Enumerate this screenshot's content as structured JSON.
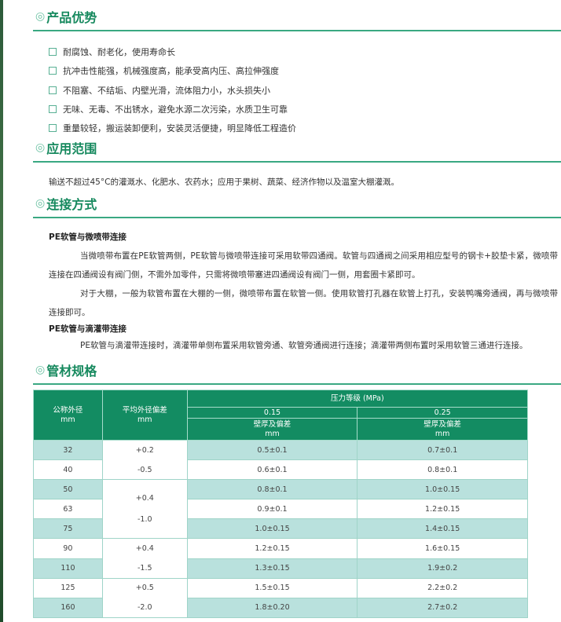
{
  "sections": {
    "advantages": {
      "title": "产品优势",
      "items": [
        "耐腐蚀、耐老化，使用寿命长",
        "抗冲击性能强，机械强度高，能承受高内压、高拉伸强度",
        "不阻塞、不结垢、内壁光滑，流体阻力小，水头损失小",
        "无味、无毒、不出锈水，避免水源二次污染，水质卫生可靠",
        "重量较轻，搬运装卸便利，安装灵活便捷，明显降低工程造价"
      ]
    },
    "application": {
      "title": "应用范围",
      "text": "输送不超过45°C的灌溉水、化肥水、农药水；应用于果树、蔬菜、经济作物以及温室大棚灌溉。"
    },
    "connection": {
      "title": "连接方式",
      "h1": "PE软管与微喷带连接",
      "p1": "当微喷带布置在PE软管两侧，PE软管与微喷带连接可采用软带四通阀。软管与四通阀之间采用相应型号的钢卡+胶垫卡紧，微喷带连接在四通阀设有阀门侧，不需外加零件，只需将微喷带塞进四通阀设有阀门一侧，用套圈卡紧即可。",
      "p2": "对于大棚，一般为软管布置在大棚的一侧，微喷带布置在软管一侧。使用软管打孔器在软管上打孔，安装鸭嘴旁通阀，再与微喷带连接即可。",
      "h2": "PE软管与滴灌带连接",
      "p3": "PE软管与滴灌带连接时，滴灌带单侧布置采用软管旁通、软管旁通阀进行连接；滴灌带两侧布置时采用软管三通进行连接。"
    },
    "specs": {
      "title": "管材规格"
    }
  },
  "table": {
    "h_od": "公称外径",
    "h_od_unit": "mm",
    "h_dev": "平均外径偏差",
    "h_dev_unit": "mm",
    "h_pressure": "压力等级 (MPa)",
    "p1": "0.15",
    "p2": "0.25",
    "wall": "壁厚及偏差",
    "wall_unit": "mm",
    "rows": [
      {
        "od": "32",
        "w1": "0.5±0.1",
        "w2": "0.7±0.1"
      },
      {
        "od": "40",
        "w1": "0.6±0.1",
        "w2": "0.8±0.1"
      },
      {
        "od": "50",
        "w1": "0.8±0.1",
        "w2": "1.0±0.15"
      },
      {
        "od": "63",
        "w1": "0.9±0.1",
        "w2": "1.2±0.15"
      },
      {
        "od": "75",
        "w1": "1.0±0.15",
        "w2": "1.4±0.15"
      },
      {
        "od": "90",
        "w1": "1.2±0.15",
        "w2": "1.6±0.15"
      },
      {
        "od": "110",
        "w1": "1.3±0.15",
        "w2": "1.9±0.2"
      },
      {
        "od": "125",
        "w1": "1.5±0.15",
        "w2": "2.2±0.2"
      },
      {
        "od": "160",
        "w1": "1.8±0.20",
        "w2": "2.7±0.2"
      }
    ],
    "dev": [
      {
        "plus": "+0.2",
        "minus": "-0.5"
      },
      {
        "plus": "+0.4",
        "minus": "-1.0"
      },
      {
        "plus": "+0.4",
        "minus": "-1.5"
      },
      {
        "plus": "+0.5",
        "minus": "-2.0"
      }
    ]
  },
  "colors": {
    "accent": "#138c62",
    "row_tint": "#b9e1dd"
  }
}
